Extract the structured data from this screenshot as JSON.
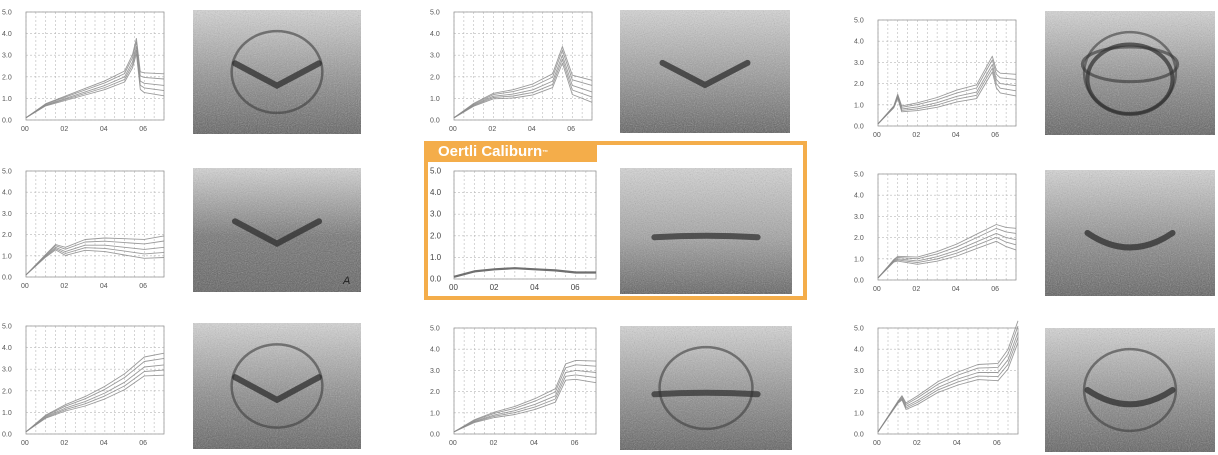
{
  "highlight": {
    "label": "Oertli Caliburn",
    "mark": "™",
    "color": "#f4ad4a"
  },
  "chart_data": [
    {
      "type": "line",
      "x": [
        0,
        0.1,
        0.2,
        0.3,
        0.4,
        0.5,
        0.54,
        0.56,
        0.58,
        0.6,
        0.7
      ],
      "series": [
        {
          "values": [
            0.1,
            0.7,
            1.0,
            1.3,
            1.6,
            2.0,
            2.7,
            3.4,
            1.8,
            1.7,
            1.6
          ]
        }
      ],
      "xticks": [
        "00",
        "02",
        "04",
        "06"
      ],
      "yticks": [
        "0.0",
        "1.0",
        "2.0",
        "3.0",
        "4.0",
        "5.0"
      ],
      "xlim": [
        0,
        0.7
      ],
      "ylim": [
        0,
        5
      ]
    },
    {
      "type": "line",
      "x": [
        0,
        0.1,
        0.2,
        0.3,
        0.4,
        0.5,
        0.55,
        0.6,
        0.7
      ],
      "series": [
        {
          "values": [
            0.1,
            0.7,
            1.1,
            1.2,
            1.4,
            1.8,
            3.0,
            1.6,
            1.3
          ]
        }
      ],
      "xticks": [
        "00",
        "02",
        "04",
        "06"
      ],
      "yticks": [
        "0.0",
        "1.0",
        "2.0",
        "3.0",
        "4.0",
        "5.0"
      ],
      "xlim": [
        0,
        0.7
      ],
      "ylim": [
        0,
        5
      ]
    },
    {
      "type": "line",
      "x": [
        0,
        0.08,
        0.1,
        0.12,
        0.2,
        0.3,
        0.4,
        0.5,
        0.58,
        0.6,
        0.62,
        0.7
      ],
      "series": [
        {
          "values": [
            0.1,
            0.9,
            1.4,
            0.8,
            0.9,
            1.1,
            1.4,
            1.6,
            2.9,
            2.2,
            2.0,
            1.9
          ]
        }
      ],
      "xticks": [
        "00",
        "02",
        "04",
        "06"
      ],
      "yticks": [
        "0.0",
        "1.0",
        "2.0",
        "3.0",
        "4.0",
        "5.0"
      ],
      "xlim": [
        0,
        0.7
      ],
      "ylim": [
        0,
        5
      ]
    },
    {
      "type": "line",
      "x": [
        0,
        0.1,
        0.15,
        0.2,
        0.3,
        0.4,
        0.5,
        0.6,
        0.7
      ],
      "series": [
        {
          "values": [
            0.1,
            1.0,
            1.4,
            1.2,
            1.5,
            1.5,
            1.4,
            1.3,
            1.4
          ]
        }
      ],
      "xticks": [
        "00",
        "02",
        "04",
        "06"
      ],
      "yticks": [
        "0.0",
        "1.0",
        "2.0",
        "3.0",
        "4.0",
        "5.0"
      ],
      "xlim": [
        0,
        0.7
      ],
      "ylim": [
        0,
        5
      ]
    },
    {
      "type": "line",
      "x": [
        0,
        0.1,
        0.2,
        0.3,
        0.4,
        0.5,
        0.6,
        0.7
      ],
      "series": [
        {
          "values": [
            0.1,
            0.35,
            0.45,
            0.5,
            0.45,
            0.4,
            0.3,
            0.3
          ]
        }
      ],
      "xticks": [
        "00",
        "02",
        "04",
        "06"
      ],
      "yticks": [
        "0.0",
        "1.0",
        "2.0",
        "3.0",
        "4.0",
        "5.0"
      ],
      "xlim": [
        0,
        0.7
      ],
      "ylim": [
        0,
        5
      ]
    },
    {
      "type": "line",
      "x": [
        0,
        0.08,
        0.1,
        0.2,
        0.3,
        0.4,
        0.5,
        0.6,
        0.65,
        0.7
      ],
      "series": [
        {
          "values": [
            0.1,
            0.9,
            1.0,
            0.9,
            1.1,
            1.4,
            1.8,
            2.2,
            2.0,
            1.9
          ]
        }
      ],
      "xticks": [
        "00",
        "02",
        "04",
        "06"
      ],
      "yticks": [
        "0.0",
        "1.0",
        "2.0",
        "3.0",
        "4.0",
        "5.0"
      ],
      "xlim": [
        0,
        0.7
      ],
      "ylim": [
        0,
        5
      ]
    },
    {
      "type": "line",
      "x": [
        0,
        0.1,
        0.2,
        0.3,
        0.4,
        0.5,
        0.6,
        0.7
      ],
      "series": [
        {
          "values": [
            0.1,
            0.8,
            1.2,
            1.5,
            1.9,
            2.4,
            3.1,
            3.2
          ]
        }
      ],
      "xticks": [
        "00",
        "02",
        "04",
        "06"
      ],
      "yticks": [
        "0.0",
        "1.0",
        "2.0",
        "3.0",
        "4.0",
        "5.0"
      ],
      "xlim": [
        0,
        0.7
      ],
      "ylim": [
        0,
        5
      ]
    },
    {
      "type": "line",
      "x": [
        0,
        0.1,
        0.2,
        0.3,
        0.4,
        0.5,
        0.55,
        0.6,
        0.7
      ],
      "series": [
        {
          "values": [
            0.1,
            0.6,
            0.9,
            1.1,
            1.4,
            1.8,
            2.9,
            3.0,
            2.9
          ]
        }
      ],
      "xticks": [
        "00",
        "02",
        "04",
        "06"
      ],
      "yticks": [
        "0.0",
        "1.0",
        "2.0",
        "3.0",
        "4.0",
        "5.0"
      ],
      "xlim": [
        0,
        0.7
      ],
      "ylim": [
        0,
        5
      ]
    },
    {
      "type": "line",
      "x": [
        0,
        0.1,
        0.12,
        0.14,
        0.2,
        0.3,
        0.4,
        0.5,
        0.6,
        0.65,
        0.7
      ],
      "series": [
        {
          "values": [
            0.1,
            1.5,
            1.7,
            1.3,
            1.6,
            2.2,
            2.6,
            2.9,
            2.9,
            3.5,
            4.8
          ]
        }
      ],
      "xticks": [
        "00",
        "02",
        "04",
        "06"
      ],
      "yticks": [
        "0.0",
        "1.0",
        "2.0",
        "3.0",
        "4.0",
        "5.0"
      ],
      "xlim": [
        0,
        0.7
      ],
      "ylim": [
        0,
        5
      ]
    }
  ],
  "photos": [
    {
      "shape": "v-notch",
      "ring": true,
      "bg": "#8e8e8e"
    },
    {
      "shape": "v-notch",
      "ring": false,
      "bg": "#959595"
    },
    {
      "shape": "ring-double",
      "ring": true,
      "bg": "#8c8c8c"
    },
    {
      "shape": "v-notch",
      "ring": false,
      "bg": "#6f6f6f",
      "mark": "A"
    },
    {
      "shape": "flat-line",
      "ring": false,
      "bg": "#a0a0a0"
    },
    {
      "shape": "lens",
      "ring": false,
      "bg": "#8a8a8a"
    },
    {
      "shape": "v-notch",
      "ring": true,
      "bg": "#8b8b8b"
    },
    {
      "shape": "flat-line",
      "ring": true,
      "bg": "#8e8e8e"
    },
    {
      "shape": "lens",
      "ring": true,
      "bg": "#8e8e8e"
    }
  ]
}
